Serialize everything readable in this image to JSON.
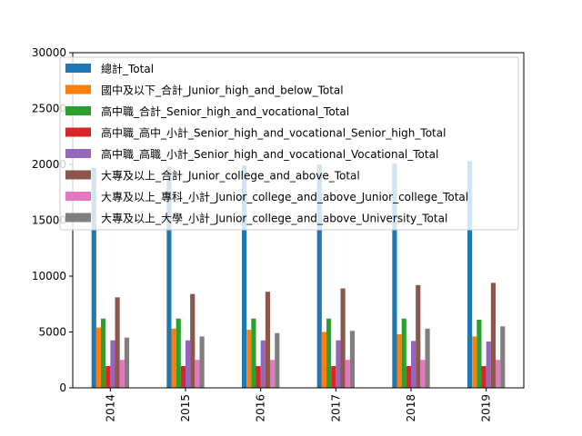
{
  "chart_data": {
    "type": "bar",
    "categories": [
      "2014",
      "2015",
      "2016",
      "2017",
      "2018",
      "2019"
    ],
    "ylim": [
      0,
      30000
    ],
    "yticks": [
      "0",
      "5000",
      "10000",
      "15000",
      "20000",
      "25000",
      "30000"
    ],
    "xlabel": "",
    "ylabel": "",
    "legend_position": "top-left",
    "grid": false,
    "series": [
      {
        "name": "總計_Total",
        "color": "#1f77b4",
        "values": [
          19700,
          19800,
          19900,
          20000,
          20100,
          20300
        ]
      },
      {
        "name": "國中及以下_合計_Junior_high_and_below_Total",
        "color": "#ff7f0e",
        "values": [
          5400,
          5300,
          5200,
          5000,
          4800,
          4600
        ]
      },
      {
        "name": "高中職_合計_Senior_high_and_vocational_Total",
        "color": "#2ca02c",
        "values": [
          6200,
          6200,
          6200,
          6200,
          6200,
          6100
        ]
      },
      {
        "name": "高中職_高中_小計_Senior_high_and_vocational_Senior_high_Total",
        "color": "#d62728",
        "values": [
          1950,
          1950,
          1950,
          1950,
          1950,
          1950
        ]
      },
      {
        "name": "高中職_高職_小計_Senior_high_and_vocational_Vocational_Total",
        "color": "#9467bd",
        "values": [
          4250,
          4250,
          4250,
          4250,
          4200,
          4150
        ]
      },
      {
        "name": "大專及以上_合計_Junior_college_and_above_Total",
        "color": "#8c564b",
        "values": [
          8100,
          8400,
          8600,
          8900,
          9200,
          9400
        ]
      },
      {
        "name": "大專及以上_專科_小計_Junior_college_and_above_Junior_college_Total",
        "color": "#e377c2",
        "values": [
          2500,
          2500,
          2500,
          2500,
          2500,
          2500
        ]
      },
      {
        "name": "大專及以上_大學_小計_Junior_college_and_above_University_Total",
        "color": "#7f7f7f",
        "values": [
          4500,
          4600,
          4900,
          5100,
          5300,
          5500
        ]
      }
    ]
  }
}
